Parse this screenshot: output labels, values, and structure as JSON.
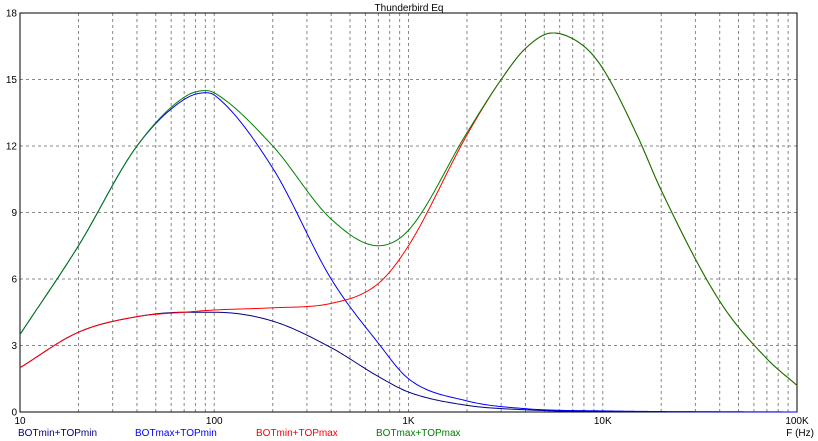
{
  "chart_data": {
    "type": "line",
    "title": "Thunderbird Eq",
    "xlabel": "F (Hz)",
    "ylabel": "",
    "x_scale": "log",
    "xlim": [
      10,
      100000
    ],
    "ylim": [
      0,
      18
    ],
    "grid": true,
    "x_tick_labels": [
      "10",
      "100",
      "1K",
      "10K",
      "100K"
    ],
    "x_tick_values": [
      10,
      100,
      1000,
      10000,
      100000
    ],
    "y_tick_values": [
      0,
      3,
      6,
      9,
      12,
      15,
      18
    ],
    "y_tick_labels": [
      "0",
      "3",
      "6",
      "9",
      "12",
      "15",
      "18"
    ],
    "legend_placement": "bottom",
    "series": [
      {
        "name": "BOTmin+TOPmin",
        "color": "#000080",
        "x": [
          10,
          20,
          40,
          70,
          100,
          200,
          400,
          700,
          1000,
          2000,
          4000,
          10000,
          100000
        ],
        "y": [
          2.0,
          3.6,
          4.3,
          4.5,
          4.5,
          4.1,
          2.9,
          1.6,
          0.9,
          0.3,
          0.1,
          0.02,
          0.0
        ]
      },
      {
        "name": "BOTmax+TOPmin",
        "color": "#0000ff",
        "x": [
          10,
          20,
          40,
          70,
          90,
          100,
          200,
          400,
          700,
          1000,
          2000,
          4000,
          10000,
          100000
        ],
        "y": [
          3.5,
          7.5,
          12.0,
          14.1,
          14.4,
          14.3,
          11.0,
          6.0,
          3.1,
          1.5,
          0.5,
          0.15,
          0.05,
          0.0
        ]
      },
      {
        "name": "BOTmin+TOPmax",
        "color": "#ff0000",
        "x": [
          10,
          20,
          40,
          70,
          100,
          200,
          400,
          700,
          1000,
          2000,
          3000,
          4000,
          5500,
          8000,
          10000,
          15000,
          20000,
          40000,
          70000,
          100000
        ],
        "y": [
          2.0,
          3.6,
          4.3,
          4.5,
          4.6,
          4.7,
          4.9,
          5.8,
          7.5,
          12.5,
          15.0,
          16.4,
          17.1,
          16.5,
          15.5,
          12.5,
          10.0,
          5.0,
          2.4,
          1.2
        ]
      },
      {
        "name": "BOTmax+TOPmax",
        "color": "#008000",
        "x": [
          10,
          20,
          40,
          70,
          90,
          100,
          200,
          400,
          700,
          1000,
          2000,
          3000,
          4000,
          5500,
          8000,
          10000,
          15000,
          20000,
          40000,
          70000,
          100000
        ],
        "y": [
          3.5,
          7.5,
          12.0,
          14.2,
          14.5,
          14.4,
          12.0,
          8.7,
          7.5,
          8.2,
          12.6,
          15.0,
          16.4,
          17.1,
          16.5,
          15.5,
          12.5,
          10.0,
          5.0,
          2.4,
          1.2
        ]
      }
    ]
  }
}
